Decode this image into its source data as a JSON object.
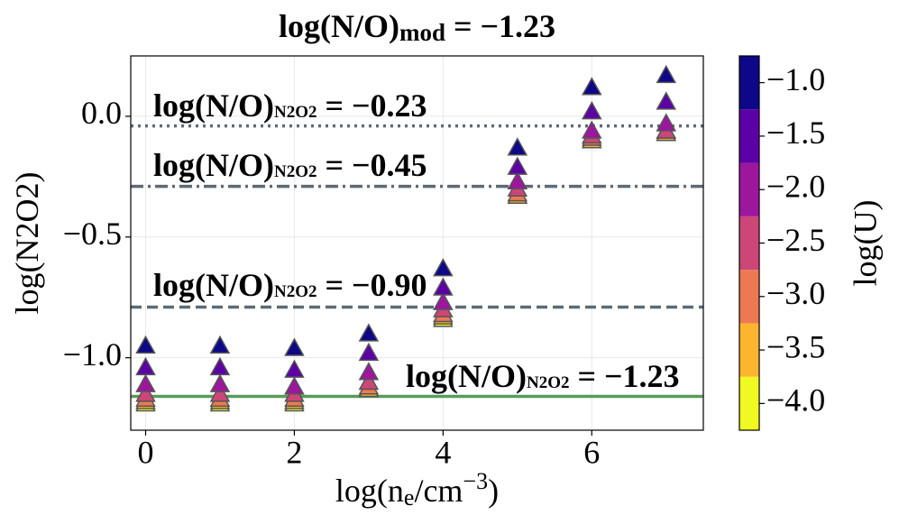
{
  "chart_data": {
    "type": "scatter",
    "title": [
      {
        "text": "log(N/O)"
      },
      {
        "text": "mod",
        "shift": "sub"
      },
      {
        "text": " = −1.23"
      }
    ],
    "x_label": [
      {
        "text": "log(n"
      },
      {
        "text": "e",
        "shift": "sub"
      },
      {
        "text": "/cm"
      },
      {
        "text": "−3",
        "shift": "sup"
      },
      {
        "text": ")"
      }
    ],
    "y_label": [
      {
        "text": "log(N2O2)"
      }
    ],
    "x": [
      0,
      1,
      2,
      3,
      4,
      5,
      6,
      7
    ],
    "series": [
      {
        "color": "#f0f921",
        "values": [
          -1.19,
          -1.19,
          -1.19,
          -1.13,
          -0.84,
          -0.33,
          -0.1,
          -0.07
        ]
      },
      {
        "color": "#fdb42f",
        "values": [
          -1.18,
          -1.18,
          -1.18,
          -1.13,
          -0.83,
          -0.33,
          -0.1,
          -0.07
        ]
      },
      {
        "color": "#ed7953",
        "values": [
          -1.17,
          -1.17,
          -1.17,
          -1.12,
          -0.82,
          -0.32,
          -0.09,
          -0.06
        ]
      },
      {
        "color": "#cc4778",
        "values": [
          -1.15,
          -1.15,
          -1.15,
          -1.1,
          -0.8,
          -0.3,
          -0.08,
          -0.06
        ]
      },
      {
        "color": "#9c179e",
        "values": [
          -1.11,
          -1.11,
          -1.12,
          -1.06,
          -0.77,
          -0.27,
          -0.06,
          -0.03
        ]
      },
      {
        "color": "#5c01a6",
        "values": [
          -1.04,
          -1.04,
          -1.05,
          -0.98,
          -0.71,
          -0.21,
          0.02,
          0.06
        ]
      },
      {
        "color": "#0d0887",
        "values": [
          -0.95,
          -0.95,
          -0.96,
          -0.9,
          -0.63,
          -0.13,
          0.12,
          0.17
        ]
      }
    ],
    "reference_lines": [
      {
        "value": -0.04,
        "color": "#5f6b73",
        "style": "dotted",
        "label": [
          {
            "text": "log(N/O)"
          },
          {
            "text": "N2O2",
            "shift": "sub"
          },
          {
            "text": " = −0.23"
          }
        ]
      },
      {
        "value": -0.29,
        "color": "#5f6b73",
        "style": "dashdot",
        "label": [
          {
            "text": "log(N/O)"
          },
          {
            "text": "N2O2",
            "shift": "sub"
          },
          {
            "text": " = −0.45"
          }
        ]
      },
      {
        "value": -0.79,
        "color": "#5f6b73",
        "style": "dashed",
        "label": [
          {
            "text": "log(N/O)"
          },
          {
            "text": "N2O2",
            "shift": "sub"
          },
          {
            "text": " = −0.90"
          }
        ]
      },
      {
        "value": -1.16,
        "color": "#5b9a5b",
        "style": "solid",
        "label": [
          {
            "text": "log(N/O)"
          },
          {
            "text": "N2O2",
            "shift": "sub"
          },
          {
            "text": " = −1.23"
          }
        ]
      }
    ],
    "xlim": [
      -0.2,
      7.5
    ],
    "ylim": [
      -1.3,
      0.25
    ],
    "xticks": [
      0,
      2,
      4,
      6
    ],
    "yticks": [
      {
        "value": 0.0,
        "label": "0.0"
      },
      {
        "value": -0.5,
        "label": "−0.5"
      },
      {
        "value": -1.0,
        "label": "−1.0"
      }
    ],
    "grid": true,
    "colorbar": {
      "label": "log(U)",
      "clim": [
        -4.25,
        -0.75
      ],
      "ticks": [
        {
          "value": -1.0,
          "label": "−1.0"
        },
        {
          "value": -1.5,
          "label": "−1.5"
        },
        {
          "value": -2.0,
          "label": "−2.0"
        },
        {
          "value": -2.5,
          "label": "−2.5"
        },
        {
          "value": -3.0,
          "label": "−3.0"
        },
        {
          "value": -3.5,
          "label": "−3.5"
        },
        {
          "value": -4.0,
          "label": "−4.0"
        }
      ]
    }
  }
}
